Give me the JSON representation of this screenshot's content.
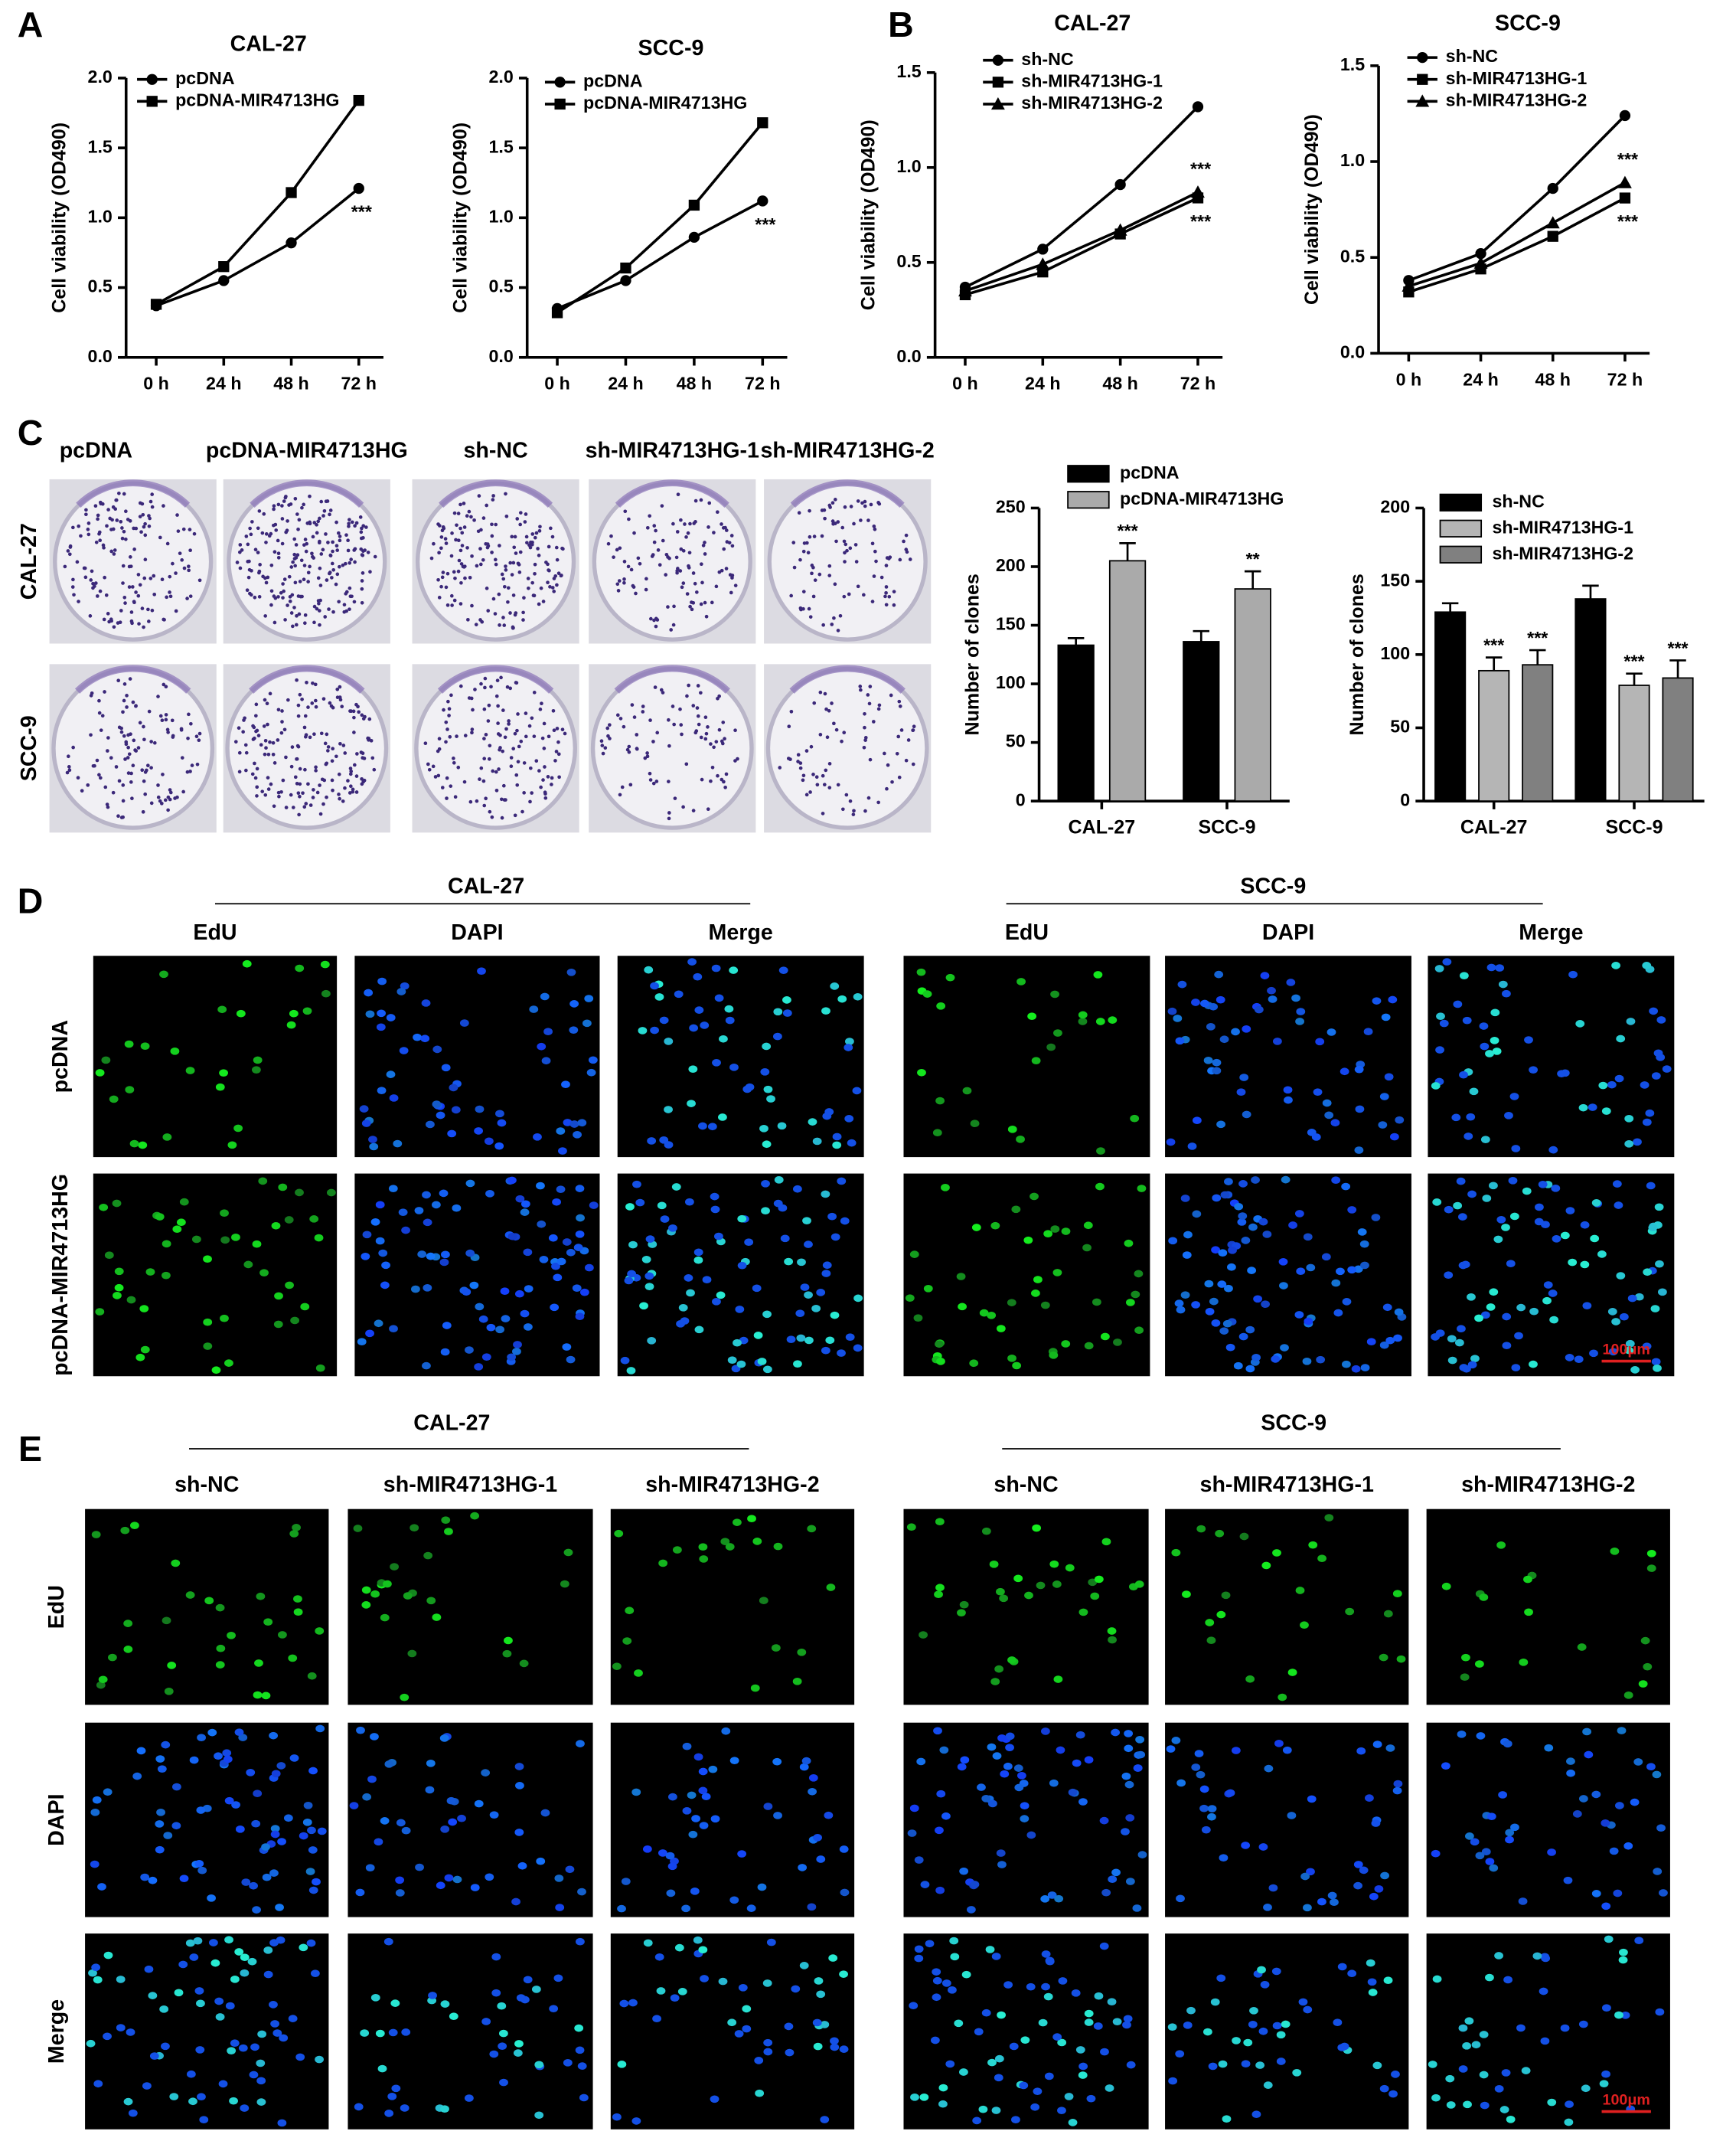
{
  "panels": {
    "labels": [
      "A",
      "B",
      "C",
      "D",
      "E"
    ]
  },
  "chart_data": [
    {
      "type": "line",
      "title": "CAL-27",
      "y_label": "Cell viability (OD490)",
      "categories": [
        "0 h",
        "24 h",
        "48 h",
        "72 h"
      ],
      "series": [
        {
          "name": "pcDNA",
          "color": "#000000",
          "marker": "circle",
          "values": [
            0.37,
            0.55,
            0.82,
            1.21
          ],
          "significance": "***"
        },
        {
          "name": "pcDNA-MIR4713HG",
          "color": "#000000",
          "marker": "square",
          "values": [
            0.38,
            0.65,
            1.18,
            1.84
          ]
        }
      ],
      "ylim": [
        0,
        2
      ],
      "yticks": [
        {
          "value": 0,
          "label": "0.0"
        },
        0.5,
        {
          "value": 1,
          "label": "1.0"
        },
        1.5,
        {
          "value": 2,
          "label": "2.0"
        }
      ]
    },
    {
      "type": "line",
      "title": "SCC-9",
      "y_label": "Cell viability (OD490)",
      "categories": [
        "0 h",
        "24 h",
        "48 h",
        "72 h"
      ],
      "series": [
        {
          "name": "pcDNA",
          "color": "#000000",
          "marker": "circle",
          "values": [
            0.35,
            0.55,
            0.86,
            1.12
          ],
          "significance": "***"
        },
        {
          "name": "pcDNA-MIR4713HG",
          "color": "#000000",
          "marker": "square",
          "values": [
            0.32,
            0.64,
            1.09,
            1.68
          ]
        }
      ],
      "ylim": [
        0,
        2
      ],
      "yticks": [
        {
          "value": 0,
          "label": "0.0"
        },
        0.5,
        {
          "value": 1,
          "label": "1.0"
        },
        1.5,
        {
          "value": 2,
          "label": "2.0"
        }
      ]
    },
    {
      "type": "line",
      "title": "CAL-27",
      "y_label": "Cell viability (OD490)",
      "categories": [
        "0 h",
        "24 h",
        "48 h",
        "72 h"
      ],
      "series": [
        {
          "name": "sh-NC",
          "color": "#000000",
          "marker": "circle",
          "values": [
            0.37,
            0.57,
            0.91,
            1.32
          ]
        },
        {
          "name": "sh-MIR4713HG-1",
          "color": "#000000",
          "marker": "square",
          "values": [
            0.33,
            0.45,
            0.65,
            0.84
          ],
          "significance": "***"
        },
        {
          "name": "sh-MIR4713HG-2",
          "color": "#000000",
          "marker": "triangle",
          "values": [
            0.35,
            0.49,
            0.67,
            0.87
          ],
          "significance": "***"
        }
      ],
      "ylim": [
        0,
        1.5
      ],
      "yticks": [
        {
          "value": 0,
          "label": "0.0"
        },
        0.5,
        {
          "value": 1,
          "label": "1.0"
        },
        1.5
      ]
    },
    {
      "type": "line",
      "title": "SCC-9",
      "y_label": "Cell viability (OD490)",
      "categories": [
        "0 h",
        "24 h",
        "48 h",
        "72 h"
      ],
      "series": [
        {
          "name": "sh-NC",
          "color": "#000000",
          "marker": "circle",
          "values": [
            0.38,
            0.52,
            0.86,
            1.24
          ]
        },
        {
          "name": "sh-MIR4713HG-1",
          "color": "#000000",
          "marker": "square",
          "values": [
            0.32,
            0.44,
            0.61,
            0.81
          ],
          "significance": "***"
        },
        {
          "name": "sh-MIR4713HG-2",
          "color": "#000000",
          "marker": "triangle",
          "values": [
            0.35,
            0.47,
            0.68,
            0.89
          ],
          "significance": "***"
        }
      ],
      "ylim": [
        0,
        1.5
      ],
      "yticks": [
        {
          "value": 0,
          "label": "0.0"
        },
        0.5,
        {
          "value": 1,
          "label": "1.0"
        },
        1.5
      ]
    },
    {
      "type": "bar",
      "y_label": "Number of clones",
      "categories": [
        "CAL-27",
        "SCC-9"
      ],
      "series": [
        {
          "name": "pcDNA",
          "color": "#000000",
          "values": [
            133,
            136
          ],
          "errors": [
            6,
            9
          ]
        },
        {
          "name": "pcDNA-MIR4713HG",
          "color": "#aaaaaa",
          "values": [
            205,
            181
          ],
          "errors": [
            15,
            15
          ],
          "significance": [
            "***",
            "**"
          ]
        }
      ],
      "ylim": [
        0,
        250
      ],
      "yticks": [
        0,
        50,
        100,
        150,
        200,
        250
      ]
    },
    {
      "type": "bar",
      "y_label": "Number of clones",
      "categories": [
        "CAL-27",
        "SCC-9"
      ],
      "series": [
        {
          "name": "sh-NC",
          "color": "#000000",
          "values": [
            129,
            138
          ],
          "errors": [
            6,
            9
          ]
        },
        {
          "name": "sh-MIR4713HG-1",
          "color": "#b5b5b5",
          "values": [
            89,
            79
          ],
          "errors": [
            9,
            8
          ],
          "significance": [
            "***",
            "***"
          ]
        },
        {
          "name": "sh-MIR4713HG-2",
          "color": "#808080",
          "values": [
            93,
            84
          ],
          "errors": [
            10,
            12
          ],
          "significance": [
            "***",
            "***"
          ]
        }
      ],
      "ylim": [
        0,
        200
      ],
      "yticks": [
        0,
        50,
        100,
        150,
        200
      ]
    }
  ],
  "colony_assay": {
    "columns": [
      "pcDNA",
      "pcDNA-MIR4713HG",
      "sh-NC",
      "sh-MIR4713HG-1",
      "sh-MIR4713HG-2"
    ],
    "rows": [
      "CAL-27",
      "SCC-9"
    ]
  },
  "edu_overexpression": {
    "groups": [
      "CAL-27",
      "SCC-9"
    ],
    "columns": [
      "EdU",
      "DAPI",
      "Merge"
    ],
    "rows": [
      "pcDNA",
      "pcDNA-MIR4713HG"
    ],
    "scale_bar": "100μm"
  },
  "edu_knockdown": {
    "groups": [
      "CAL-27",
      "SCC-9"
    ],
    "columns": [
      "sh-NC",
      "sh-MIR4713HG-1",
      "sh-MIR4713HG-2"
    ],
    "rows": [
      "EdU",
      "DAPI",
      "Merge"
    ],
    "scale_bar": "100μm"
  }
}
